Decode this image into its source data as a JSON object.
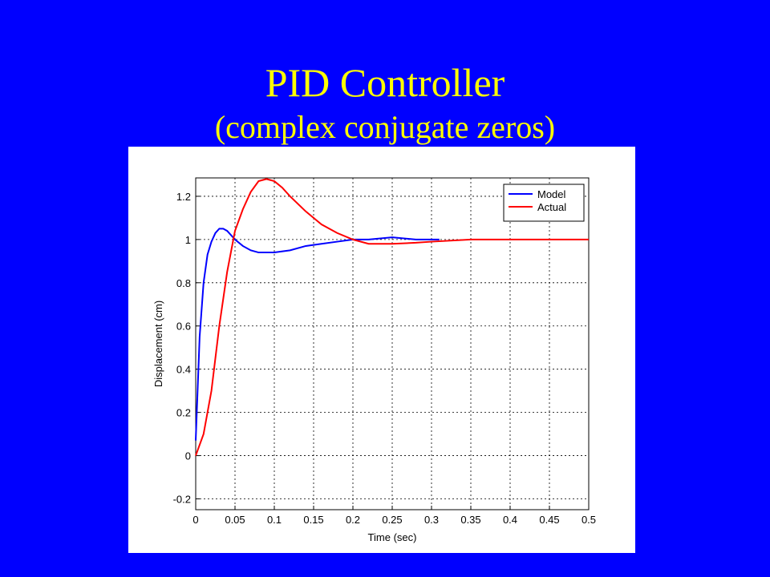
{
  "chart_data": {
    "type": "line",
    "title": "PID Controller",
    "subtitle": "(complex conjugate zeros)",
    "x_label": "Time (sec)",
    "y_label": "Displacement (cm)",
    "xlim": [
      0,
      0.5
    ],
    "ylim": [
      -0.25,
      1.285
    ],
    "xticks": [
      0,
      0.05,
      0.1,
      0.15,
      0.2,
      0.25,
      0.3,
      0.35,
      0.4,
      0.45,
      0.5
    ],
    "yticks": [
      -0.2,
      0,
      0.2,
      0.4,
      0.6,
      0.8,
      1,
      1.2
    ],
    "grid": true,
    "legend": "top-right",
    "series": [
      {
        "name": "Model",
        "color": "#0000ff",
        "x": [
          0,
          0.005,
          0.01,
          0.015,
          0.02,
          0.025,
          0.03,
          0.035,
          0.04,
          0.05,
          0.06,
          0.07,
          0.08,
          0.09,
          0.1,
          0.12,
          0.14,
          0.16,
          0.18,
          0.2,
          0.22,
          0.25,
          0.28,
          0.31
        ],
        "values": [
          0.07,
          0.55,
          0.8,
          0.93,
          0.99,
          1.03,
          1.05,
          1.05,
          1.04,
          1.0,
          0.97,
          0.95,
          0.94,
          0.94,
          0.94,
          0.95,
          0.97,
          0.98,
          0.99,
          1.0,
          1.0,
          1.01,
          1.0,
          1.0
        ]
      },
      {
        "name": "Actual",
        "color": "#ff0000",
        "x": [
          0,
          0.01,
          0.02,
          0.03,
          0.04,
          0.05,
          0.06,
          0.07,
          0.08,
          0.09,
          0.1,
          0.11,
          0.12,
          0.14,
          0.16,
          0.18,
          0.2,
          0.22,
          0.25,
          0.28,
          0.3,
          0.35,
          0.4,
          0.5
        ],
        "values": [
          0,
          0.1,
          0.3,
          0.6,
          0.85,
          1.04,
          1.14,
          1.22,
          1.27,
          1.28,
          1.27,
          1.24,
          1.2,
          1.13,
          1.07,
          1.03,
          1.0,
          0.98,
          0.98,
          0.985,
          0.99,
          1.0,
          1.0,
          1.0
        ]
      }
    ]
  }
}
